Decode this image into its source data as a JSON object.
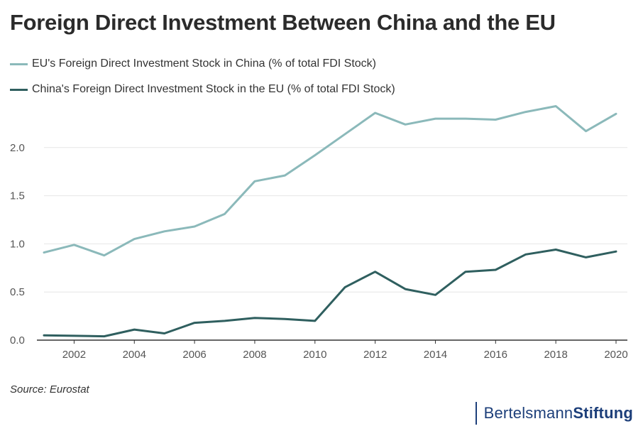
{
  "title": "Foreign Direct Investment Between China and the EU",
  "source": "Source: Eurostat",
  "brand": {
    "part1": "Bertelsmann",
    "part2": "Stiftung"
  },
  "colors": {
    "eu_series": "#8bb9ba",
    "china_series": "#2f5f5f",
    "grid": "#e6e6e6",
    "axis": "#333333",
    "brand": "#1d3f7a"
  },
  "chart_data": {
    "type": "line",
    "title": "Foreign Direct Investment Between China and the EU",
    "xlabel": "",
    "ylabel": "",
    "x": [
      2001,
      2002,
      2003,
      2004,
      2005,
      2006,
      2007,
      2008,
      2009,
      2010,
      2011,
      2012,
      2013,
      2014,
      2015,
      2016,
      2017,
      2018,
      2019,
      2020
    ],
    "x_ticks": [
      "2002",
      "2004",
      "2006",
      "2008",
      "2010",
      "2012",
      "2014",
      "2016",
      "2018",
      "2020"
    ],
    "y_ticks": [
      "0.0",
      "0.5",
      "1.0",
      "1.5",
      "2.0"
    ],
    "xlim": [
      2001,
      2020
    ],
    "ylim": [
      0,
      2.5
    ],
    "grid": "horizontal",
    "legend_position": "top-left",
    "series": [
      {
        "name": "EU's Foreign Direct Investment Stock in China (% of total FDI Stock)",
        "color": "#8bb9ba",
        "values": [
          0.91,
          0.99,
          0.88,
          1.05,
          1.13,
          1.18,
          1.31,
          1.65,
          1.71,
          1.92,
          2.14,
          2.36,
          2.24,
          2.3,
          2.3,
          2.29,
          2.37,
          2.43,
          2.17,
          2.35
        ]
      },
      {
        "name": "China's Foreign Direct Investment Stock in the EU (% of total FDI Stock)",
        "color": "#2f5f5f",
        "values": [
          0.05,
          0.045,
          0.04,
          0.11,
          0.07,
          0.18,
          0.2,
          0.23,
          0.22,
          0.2,
          0.55,
          0.71,
          0.53,
          0.47,
          0.71,
          0.73,
          0.89,
          0.94,
          0.86,
          0.92
        ]
      }
    ]
  }
}
